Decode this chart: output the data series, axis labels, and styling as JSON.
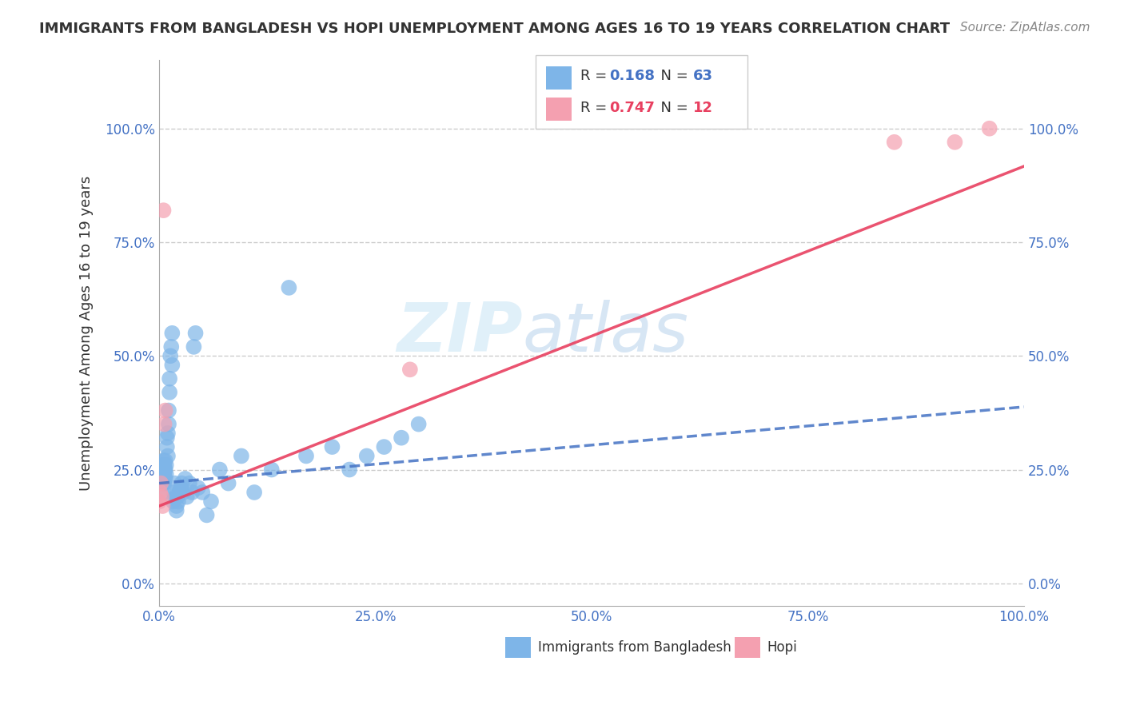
{
  "title": "IMMIGRANTS FROM BANGLADESH VS HOPI UNEMPLOYMENT AMONG AGES 16 TO 19 YEARS CORRELATION CHART",
  "source": "Source: ZipAtlas.com",
  "ylabel": "Unemployment Among Ages 16 to 19 years",
  "xlim": [
    0.0,
    1.0
  ],
  "ylim": [
    -0.05,
    1.15
  ],
  "xticks": [
    0.0,
    0.25,
    0.5,
    0.75,
    1.0
  ],
  "yticks": [
    0.0,
    0.25,
    0.5,
    0.75,
    1.0
  ],
  "xticklabels": [
    "0.0%",
    "25.0%",
    "50.0%",
    "75.0%",
    "100.0%"
  ],
  "yticklabels": [
    "0.0%",
    "25.0%",
    "50.0%",
    "75.0%",
    "100.0%"
  ],
  "r1": "0.168",
  "n1": "63",
  "r2": "0.747",
  "n2": "12",
  "color_blue": "#7EB5E8",
  "color_pink": "#F4A0B0",
  "color_blue_line": "#4472C4",
  "color_pink_line": "#E84060",
  "color_text_blue": "#4472C4",
  "color_text_pink": "#E84060",
  "watermark_zip": "ZIP",
  "watermark_atlas": "atlas",
  "bg_color": "#FFFFFF",
  "blue_x": [
    0.005,
    0.005,
    0.005,
    0.005,
    0.005,
    0.005,
    0.005,
    0.006,
    0.006,
    0.006,
    0.006,
    0.007,
    0.007,
    0.007,
    0.008,
    0.008,
    0.009,
    0.009,
    0.01,
    0.01,
    0.011,
    0.011,
    0.012,
    0.012,
    0.013,
    0.014,
    0.015,
    0.015,
    0.016,
    0.017,
    0.018,
    0.019,
    0.02,
    0.02,
    0.021,
    0.022,
    0.023,
    0.025,
    0.026,
    0.028,
    0.03,
    0.032,
    0.035,
    0.038,
    0.04,
    0.042,
    0.045,
    0.05,
    0.055,
    0.06,
    0.07,
    0.08,
    0.095,
    0.11,
    0.13,
    0.15,
    0.17,
    0.2,
    0.22,
    0.24,
    0.26,
    0.28,
    0.3
  ],
  "blue_y": [
    0.2,
    0.22,
    0.23,
    0.24,
    0.25,
    0.26,
    0.27,
    0.22,
    0.24,
    0.25,
    0.26,
    0.23,
    0.25,
    0.27,
    0.24,
    0.26,
    0.3,
    0.32,
    0.28,
    0.33,
    0.35,
    0.38,
    0.42,
    0.45,
    0.5,
    0.52,
    0.55,
    0.48,
    0.18,
    0.2,
    0.22,
    0.19,
    0.17,
    0.16,
    0.19,
    0.18,
    0.2,
    0.21,
    0.22,
    0.2,
    0.23,
    0.19,
    0.22,
    0.2,
    0.52,
    0.55,
    0.21,
    0.2,
    0.15,
    0.18,
    0.25,
    0.22,
    0.28,
    0.2,
    0.25,
    0.65,
    0.28,
    0.3,
    0.25,
    0.28,
    0.3,
    0.32,
    0.35
  ],
  "pink_x": [
    0.0,
    0.001,
    0.002,
    0.003,
    0.004,
    0.005,
    0.006,
    0.007,
    0.29,
    0.85,
    0.92,
    0.96
  ],
  "pink_y": [
    0.18,
    0.2,
    0.22,
    0.19,
    0.17,
    0.82,
    0.35,
    0.38,
    0.47,
    0.97,
    0.97,
    1.0
  ],
  "blue_slope": 0.168,
  "blue_intercept": 0.22,
  "pink_slope": 0.747,
  "pink_intercept": 0.17,
  "grid_color": "#CCCCCC",
  "right_yticklabels": [
    "0.0%",
    "25.0%",
    "50.0%",
    "75.0%",
    "100.0%"
  ]
}
